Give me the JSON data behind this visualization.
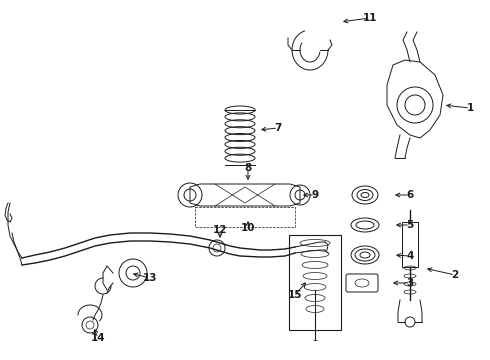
{
  "background_color": "#ffffff",
  "figsize": [
    4.9,
    3.6
  ],
  "dpi": 100,
  "line_color": "#1a1a1a",
  "label_fontsize": 7.5
}
